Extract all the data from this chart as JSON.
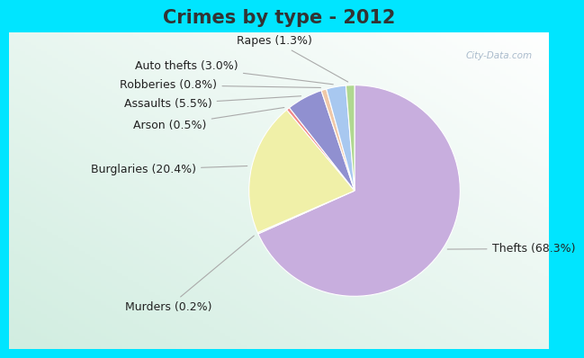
{
  "title": "Crimes by type - 2012",
  "slices": [
    {
      "label": "Thefts (68.3%)",
      "value": 68.3,
      "color": "#c8aede"
    },
    {
      "label": "Murders (0.2%)",
      "value": 0.2,
      "color": "#c8dfc0"
    },
    {
      "label": "Burglaries (20.4%)",
      "value": 20.4,
      "color": "#f0f0a8"
    },
    {
      "label": "Arson (0.5%)",
      "value": 0.5,
      "color": "#f08888"
    },
    {
      "label": "Assaults (5.5%)",
      "value": 5.5,
      "color": "#9090d0"
    },
    {
      "label": "Robberies (0.8%)",
      "value": 0.8,
      "color": "#f0c8a8"
    },
    {
      "label": "Auto thefts (3.0%)",
      "value": 3.0,
      "color": "#a8c8f0"
    },
    {
      "label": "Rapes (1.3%)",
      "value": 1.3,
      "color": "#b0d890"
    }
  ],
  "outer_bg": "#00e5ff",
  "title_fontsize": 15,
  "label_fontsize": 9,
  "watermark": "City-Data.com",
  "title_color": "#333333"
}
